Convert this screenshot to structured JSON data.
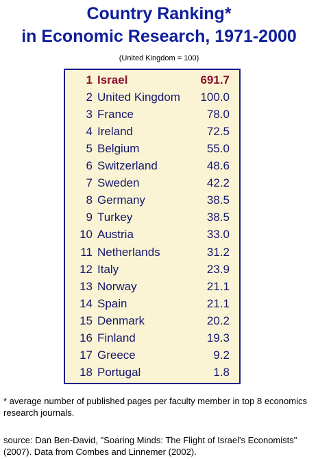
{
  "chart_data": {
    "type": "table",
    "title_line1": "Country Ranking*",
    "title_line2": "in Economic Research, 1971-2000",
    "subtitle": "(United Kingdom = 100)",
    "highlight_color": "#8a1230",
    "text_color": "#14166e",
    "title_color": "#0f1e9a",
    "rows": [
      {
        "rank": "1",
        "country": "Israel",
        "score": "691.7",
        "highlight": true
      },
      {
        "rank": "2",
        "country": "United Kingdom",
        "score": "100.0"
      },
      {
        "rank": "3",
        "country": "France",
        "score": "78.0"
      },
      {
        "rank": "4",
        "country": "Ireland",
        "score": "72.5"
      },
      {
        "rank": "5",
        "country": "Belgium",
        "score": "55.0"
      },
      {
        "rank": "6",
        "country": "Switzerland",
        "score": "48.6"
      },
      {
        "rank": "7",
        "country": "Sweden",
        "score": "42.2"
      },
      {
        "rank": "8",
        "country": "Germany",
        "score": "38.5"
      },
      {
        "rank": "9",
        "country": "Turkey",
        "score": "38.5"
      },
      {
        "rank": "10",
        "country": "Austria",
        "score": "33.0"
      },
      {
        "rank": "11",
        "country": "Netherlands",
        "score": "31.2"
      },
      {
        "rank": "12",
        "country": "Italy",
        "score": "23.9"
      },
      {
        "rank": "13",
        "country": "Norway",
        "score": "21.1"
      },
      {
        "rank": "14",
        "country": "Spain",
        "score": "21.1"
      },
      {
        "rank": "15",
        "country": "Denmark",
        "score": "20.2"
      },
      {
        "rank": "16",
        "country": "Finland",
        "score": "19.3"
      },
      {
        "rank": "17",
        "country": "Greece",
        "score": "9.2"
      },
      {
        "rank": "18",
        "country": "Portugal",
        "score": "1.8"
      }
    ]
  },
  "footnote": "* average number of published pages per faculty member in top 8 economics research journals.",
  "source": "source: Dan Ben-David, \"Soaring Minds: The Flight of Israel's Economists\" (2007). Data from Combes and Linnemer (2002)."
}
